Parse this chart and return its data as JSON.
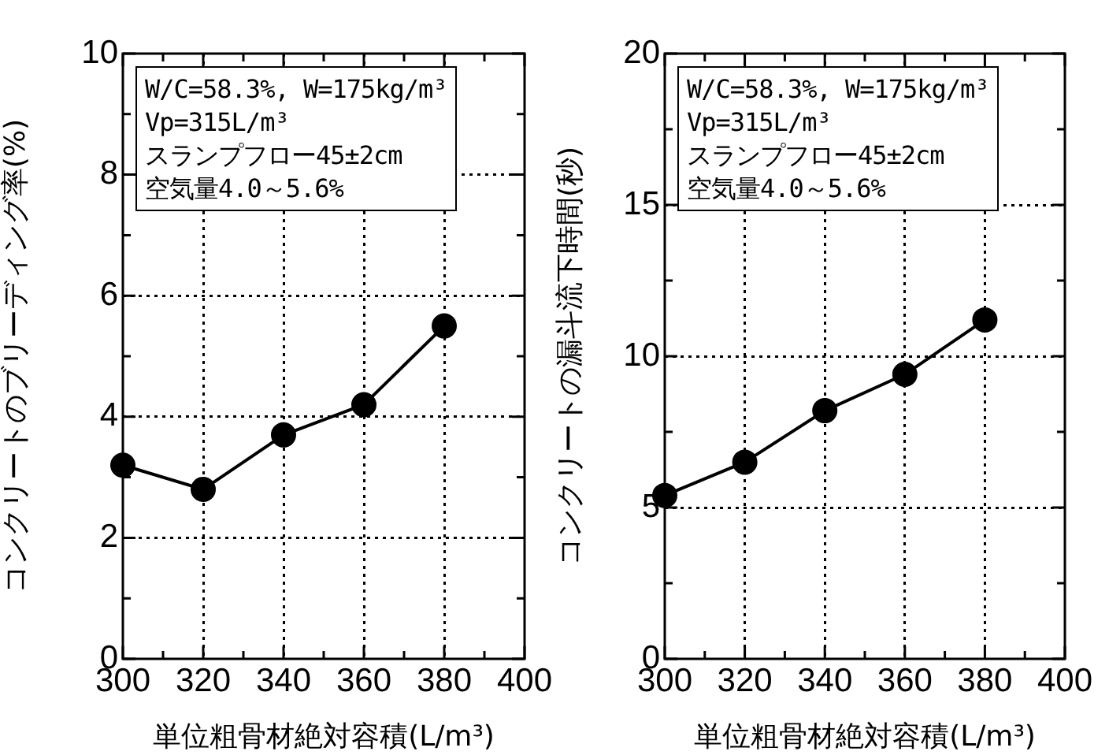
{
  "chart_data": [
    {
      "type": "line",
      "xlabel": "単位粗骨材絶対容積(L/m³)",
      "ylabel": "コンクリートのブリーディング率(%)",
      "x": [
        300,
        320,
        340,
        360,
        380
      ],
      "series": [
        {
          "color": "#000000",
          "values": [
            3.2,
            2.8,
            3.7,
            4.2,
            5.5
          ]
        }
      ],
      "xlim": [
        300,
        400
      ],
      "xticks": [
        300,
        {
          "value": 310,
          "label": null
        },
        320,
        {
          "value": 330,
          "label": null
        },
        340,
        {
          "value": 350,
          "label": null
        },
        360,
        {
          "value": 370,
          "label": null
        },
        380,
        {
          "value": 390,
          "label": null
        },
        400
      ],
      "ylim": [
        0,
        10
      ],
      "yticks": [
        0,
        {
          "value": 1,
          "label": null
        },
        2,
        {
          "value": 3,
          "label": null
        },
        4,
        {
          "value": 5,
          "label": null
        },
        6,
        {
          "value": 7,
          "label": null
        },
        8,
        {
          "value": 9,
          "label": null
        },
        10
      ],
      "grid": true,
      "marker": "circle",
      "line_style": "solid",
      "annotations": [
        "W/C=58.3%, W=175kg/m³",
        "Vp=315L/m³",
        "スランプフロー45±2cm",
        "空気量4.0～5.6%"
      ]
    },
    {
      "type": "line",
      "xlabel": "単位粗骨材絶対容積(L/m³)",
      "ylabel": "コンクリートの漏斗流下時間(秒)",
      "x": [
        300,
        320,
        340,
        360,
        380
      ],
      "series": [
        {
          "color": "#000000",
          "values": [
            5.4,
            6.5,
            8.2,
            9.4,
            11.2
          ]
        }
      ],
      "xlim": [
        300,
        400
      ],
      "xticks": [
        300,
        {
          "value": 310,
          "label": null
        },
        320,
        {
          "value": 330,
          "label": null
        },
        340,
        {
          "value": 350,
          "label": null
        },
        360,
        {
          "value": 370,
          "label": null
        },
        380,
        {
          "value": 390,
          "label": null
        },
        400
      ],
      "ylim": [
        0,
        20
      ],
      "yticks": [
        0,
        {
          "value": 2.5,
          "label": null
        },
        5,
        {
          "value": 7.5,
          "label": null
        },
        10,
        {
          "value": 12.5,
          "label": null
        },
        15,
        {
          "value": 17.5,
          "label": null
        },
        20
      ],
      "grid": true,
      "marker": "circle",
      "line_style": "solid",
      "annotations": [
        "W/C=58.3%, W=175kg/m³",
        "Vp=315L/m³",
        "スランプフロー45±2cm",
        "空気量4.0～5.6%"
      ]
    }
  ]
}
